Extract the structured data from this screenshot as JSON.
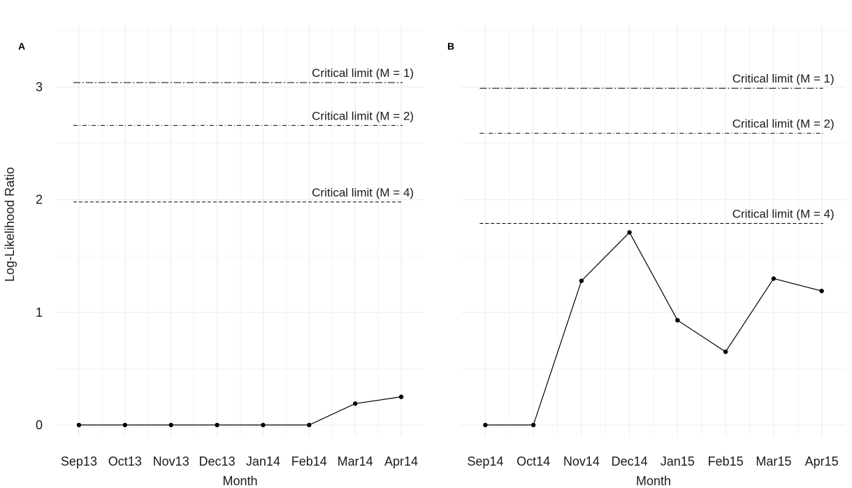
{
  "y_axis_title": "Log-Likelihood Ratio",
  "chart_data": [
    {
      "type": "line",
      "panel_label": "A",
      "xlabel": "Month",
      "ylabel": "Log-Likelihood Ratio",
      "categories": [
        "Sep13",
        "Oct13",
        "Nov13",
        "Dec13",
        "Jan14",
        "Feb14",
        "Mar14",
        "Apr14"
      ],
      "values": [
        0,
        0,
        0,
        0,
        0,
        0,
        0.19,
        0.25
      ],
      "ylim": [
        -0.1,
        3.55
      ],
      "yticks": [
        "0",
        "1",
        "2",
        "3"
      ],
      "grid": true,
      "critical_limits": [
        {
          "label": "Critical limit (M = 1)",
          "value": 3.04,
          "dash": "dashdot"
        },
        {
          "label": "Critical limit (M = 2)",
          "value": 2.66,
          "dash": "dashdot-fine"
        },
        {
          "label": "Critical limit (M = 4)",
          "value": 1.98,
          "dash": "dashed"
        }
      ]
    },
    {
      "type": "line",
      "panel_label": "B",
      "xlabel": "Month",
      "ylabel": "",
      "categories": [
        "Sep14",
        "Oct14",
        "Nov14",
        "Dec14",
        "Jan15",
        "Feb15",
        "Mar15",
        "Apr15"
      ],
      "values": [
        0,
        0,
        1.28,
        1.71,
        0.93,
        0.65,
        1.3,
        1.19
      ],
      "ylim": [
        -0.1,
        3.55
      ],
      "yticks": [
        "",
        "",
        "",
        ""
      ],
      "grid": true,
      "critical_limits": [
        {
          "label": "Critical limit (M = 1)",
          "value": 2.99,
          "dash": "dashdot"
        },
        {
          "label": "Critical limit (M = 2)",
          "value": 2.59,
          "dash": "dashdot-fine"
        },
        {
          "label": "Critical limit (M = 4)",
          "value": 1.79,
          "dash": "dashed"
        }
      ]
    }
  ]
}
